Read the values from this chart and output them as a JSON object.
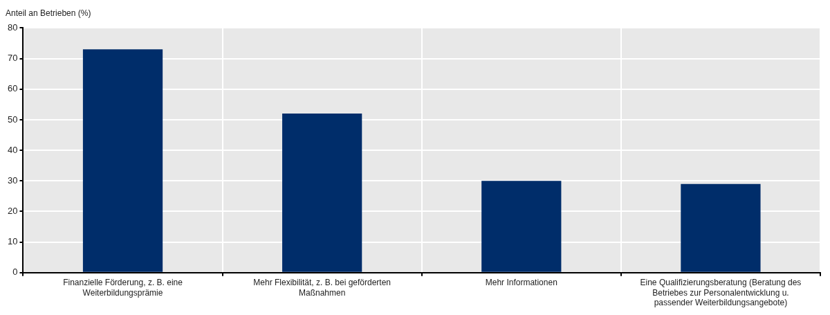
{
  "chart_data": {
    "type": "bar",
    "ylabel": "Anteil an Betrieben (%)",
    "categories": [
      "Finanzielle Förderung, z. B. eine Weiterbildungsprämie",
      "Mehr Flexibilität, z. B. bei geförderten Maßnahmen",
      "Mehr Informationen",
      "Eine Qualifizierungsberatung (Beratung des Betriebes zur Personalentwicklung u. passender Weiterbildungsangebote)"
    ],
    "values": [
      73,
      52,
      30,
      29
    ],
    "color": "#002d6a",
    "ylim": [
      0,
      80
    ],
    "yticks": [
      0,
      10,
      20,
      30,
      40,
      50,
      60,
      70,
      80
    ],
    "grid": true,
    "legend": false
  }
}
